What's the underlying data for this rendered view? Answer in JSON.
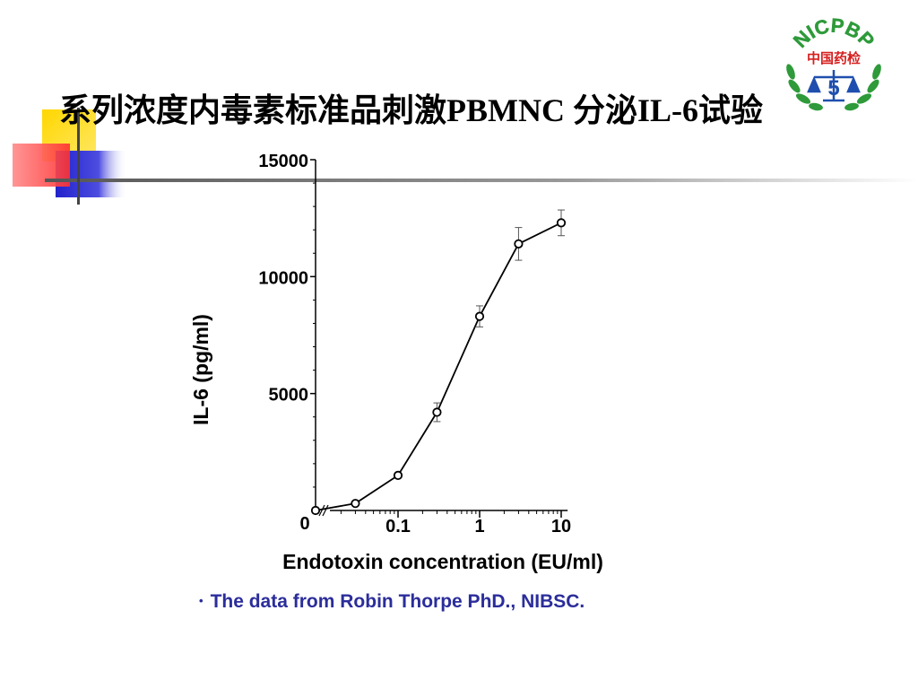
{
  "slide": {
    "title": "系列浓度内毒素标准品刺激PBMNC 分泌IL-6试验",
    "footnote_bullet": "•",
    "footnote": "The data from Robin Thorpe PhD., NIBSC.",
    "accent_colors": {
      "yellow": "#ffd700",
      "red": "#ff3b3b",
      "blue": "#2a2ad8",
      "footnote_blue": "#2b2d9b"
    }
  },
  "logo": {
    "arc_text": "NICPBP",
    "banner_text": "中国药检",
    "number": "5",
    "colors": {
      "green": "#2e9a3a",
      "red": "#d62020",
      "blue": "#1f4fae"
    }
  },
  "chart_data": {
    "type": "line",
    "title": "",
    "xlabel": "Endotoxin concentration (EU/ml)",
    "ylabel": "IL-6 (pg/ml)",
    "x_scale": "log",
    "x_axis_break": true,
    "x_ticks": [
      {
        "value": 0,
        "label": "0"
      },
      {
        "value": 0.1,
        "label": "0.1"
      },
      {
        "value": 1,
        "label": "1"
      },
      {
        "value": 10,
        "label": "10"
      }
    ],
    "ylim": [
      0,
      15000
    ],
    "y_ticks": [
      {
        "value": 5000,
        "label": "5000"
      },
      {
        "value": 10000,
        "label": "10000"
      },
      {
        "value": 15000,
        "label": "15000"
      }
    ],
    "grid": false,
    "points": [
      {
        "x": 0,
        "y": 0,
        "error": 0
      },
      {
        "x": 0.03,
        "y": 300,
        "error": 0
      },
      {
        "x": 0.1,
        "y": 1500,
        "error": 0
      },
      {
        "x": 0.3,
        "y": 4200,
        "error": 400
      },
      {
        "x": 1,
        "y": 8300,
        "error": 450
      },
      {
        "x": 3,
        "y": 11400,
        "error": 700
      },
      {
        "x": 10,
        "y": 12300,
        "error": 550
      }
    ]
  }
}
